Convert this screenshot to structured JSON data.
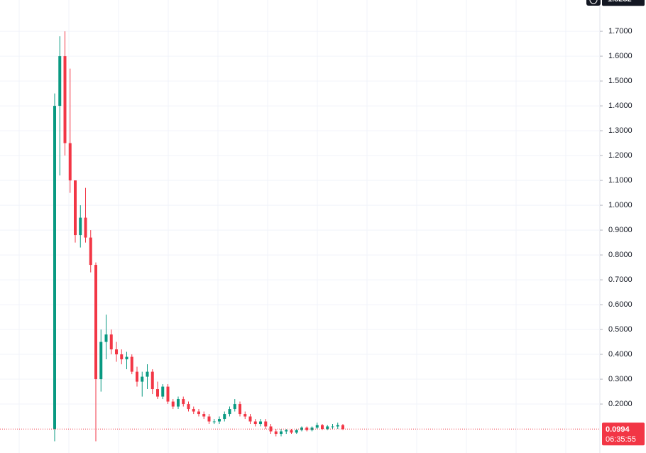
{
  "chart_data": {
    "type": "candlestick",
    "up_color": "#089981",
    "down_color": "#f23645",
    "grid": true,
    "ylim": [
      0.003,
      1.826
    ],
    "yticks": [
      {
        "value": 0.2,
        "label": "0.2000"
      },
      {
        "value": 0.3,
        "label": "0.3000"
      },
      {
        "value": 0.4,
        "label": "0.4000"
      },
      {
        "value": 0.5,
        "label": "0.5000"
      },
      {
        "value": 0.6,
        "label": "0.6000"
      },
      {
        "value": 0.7,
        "label": "0.7000"
      },
      {
        "value": 0.8,
        "label": "0.8000"
      },
      {
        "value": 0.9,
        "label": "0.9000"
      },
      {
        "value": 1.0,
        "label": "1.0000"
      },
      {
        "value": 1.1,
        "label": "1.1000"
      },
      {
        "value": 1.2,
        "label": "1.2000"
      },
      {
        "value": 1.3,
        "label": "1.3000"
      },
      {
        "value": 1.4,
        "label": "1.4000"
      },
      {
        "value": 1.5,
        "label": "1.5000"
      },
      {
        "value": 1.6,
        "label": "1.6000"
      },
      {
        "value": 1.7,
        "label": "1.7000"
      }
    ],
    "max_price": 1.8282,
    "last_price": 0.0994,
    "countdown": "06:35:55",
    "open": [
      0.1,
      1.4,
      1.6,
      1.25,
      1.1,
      0.88,
      0.95,
      0.87,
      0.76,
      0.3,
      0.45,
      0.48,
      0.42,
      0.4,
      0.38,
      0.39,
      0.33,
      0.29,
      0.31,
      0.33,
      0.26,
      0.23,
      0.27,
      0.21,
      0.19,
      0.22,
      0.2,
      0.18,
      0.17,
      0.16,
      0.15,
      0.13,
      0.13,
      0.14,
      0.16,
      0.18,
      0.2,
      0.16,
      0.15,
      0.13,
      0.12,
      0.13,
      0.11,
      0.09,
      0.08,
      0.09,
      0.095,
      0.085,
      0.095,
      0.105,
      0.095,
      0.105,
      0.115,
      0.1,
      0.11,
      0.11,
      0.115
    ],
    "high": [
      1.45,
      1.68,
      1.7,
      1.55,
      1.1,
      1.0,
      1.07,
      0.9,
      0.77,
      0.5,
      0.56,
      0.5,
      0.45,
      0.42,
      0.41,
      0.4,
      0.35,
      0.33,
      0.36,
      0.34,
      0.29,
      0.28,
      0.28,
      0.22,
      0.23,
      0.23,
      0.21,
      0.19,
      0.18,
      0.17,
      0.16,
      0.14,
      0.15,
      0.17,
      0.19,
      0.22,
      0.21,
      0.17,
      0.16,
      0.14,
      0.14,
      0.14,
      0.12,
      0.1,
      0.1,
      0.1,
      0.1,
      0.1,
      0.11,
      0.11,
      0.11,
      0.125,
      0.12,
      0.115,
      0.12,
      0.125,
      0.12
    ],
    "low": [
      0.05,
      1.12,
      1.2,
      1.05,
      0.85,
      0.83,
      0.85,
      0.73,
      0.05,
      0.25,
      0.38,
      0.4,
      0.37,
      0.36,
      0.34,
      0.32,
      0.27,
      0.23,
      0.26,
      0.24,
      0.22,
      0.22,
      0.2,
      0.18,
      0.18,
      0.19,
      0.17,
      0.16,
      0.15,
      0.14,
      0.12,
      0.12,
      0.12,
      0.13,
      0.15,
      0.17,
      0.15,
      0.14,
      0.12,
      0.11,
      0.11,
      0.1,
      0.08,
      0.07,
      0.07,
      0.08,
      0.08,
      0.08,
      0.09,
      0.09,
      0.09,
      0.1,
      0.095,
      0.095,
      0.1,
      0.1,
      0.095
    ],
    "close": [
      1.4,
      1.6,
      1.25,
      1.1,
      0.88,
      0.95,
      0.87,
      0.76,
      0.3,
      0.45,
      0.48,
      0.42,
      0.4,
      0.38,
      0.39,
      0.33,
      0.29,
      0.31,
      0.33,
      0.26,
      0.23,
      0.27,
      0.21,
      0.19,
      0.22,
      0.2,
      0.18,
      0.17,
      0.16,
      0.15,
      0.13,
      0.13,
      0.14,
      0.16,
      0.18,
      0.2,
      0.16,
      0.15,
      0.13,
      0.12,
      0.13,
      0.11,
      0.09,
      0.08,
      0.09,
      0.095,
      0.085,
      0.095,
      0.105,
      0.095,
      0.105,
      0.115,
      0.1,
      0.11,
      0.11,
      0.115,
      0.0994
    ]
  }
}
